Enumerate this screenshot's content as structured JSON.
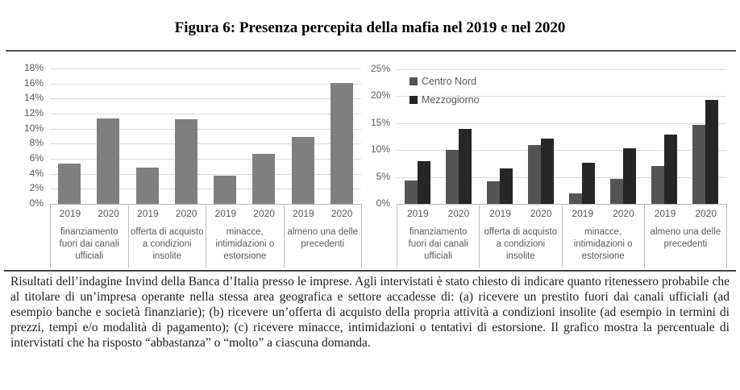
{
  "figure": {
    "title": "Figura 6: Presenza percepita della mafia nel 2019 e nel 2020",
    "caption": "Risultati dell’indagine Invind della Banca d’Italia presso le imprese. Agli intervistati è stato chiesto di indicare quanto ritenessero probabile che al titolare di un’impresa operante nella stessa area geografica e settore accadesse di: (a) ricevere un prestito fuori dai canali ufficiali (ad esempio banche e società finanziarie); (b) ricevere un’offerta di acquisto della propria attività a condizioni insolite (ad esempio in termini di prezzi, tempi e/o modalità di pagamento); (c) ricevere minacce, intimidazioni o tentativi di estorsione. Il grafico mostra la percentuale di intervistati che ha risposto “abbastanza” o “molto” a ciascuna domanda."
  },
  "chart_data": [
    {
      "type": "bar",
      "title": "",
      "categories": [
        "finanziamento\nfuori dai canali\nufficiali",
        "offerta di acquisto\na condizioni\ninsolite",
        "minacce,\nintimidazioni o\nestorsione",
        "almeno una delle\nprecedenti"
      ],
      "year_labels": [
        "2019",
        "2020"
      ],
      "series": [
        {
          "name": "",
          "color": "#7f7f7f",
          "values": [
            [
              5.4,
              11.4
            ],
            [
              4.8,
              11.3
            ],
            [
              3.8,
              6.6
            ],
            [
              8.9,
              16.1
            ]
          ]
        }
      ],
      "ylim": [
        0,
        18
      ],
      "ytick_step": 2,
      "ytick_labels": [
        "0%",
        "2%",
        "4%",
        "6%",
        "8%",
        "10%",
        "12%",
        "14%",
        "16%",
        "18%"
      ],
      "grid": true,
      "legend": false
    },
    {
      "type": "bar",
      "title": "",
      "categories": [
        "finanziamento\nfuori dai canali\nufficiali",
        "offerta di acquisto\na condizioni\ninsolite",
        "minacce,\nintimidazioni o\nestorsione",
        "almeno una delle\nprecedenti"
      ],
      "year_labels": [
        "2019",
        "2020"
      ],
      "series": [
        {
          "name": "Centro Nord",
          "color": "#545454",
          "values": [
            [
              4.3,
              10.1
            ],
            [
              4.2,
              10.9
            ],
            [
              1.9,
              4.7
            ],
            [
              7.0,
              14.6
            ]
          ]
        },
        {
          "name": "Mezzogiorno",
          "color": "#262626",
          "values": [
            [
              7.9,
              13.9
            ],
            [
              6.6,
              12.1
            ],
            [
              7.7,
              10.4
            ],
            [
              12.9,
              19.3
            ]
          ]
        }
      ],
      "ylim": [
        0,
        25
      ],
      "ytick_step": 5,
      "ytick_labels": [
        "0%",
        "5%",
        "10%",
        "15%",
        "20%",
        "25%"
      ],
      "grid": true,
      "legend": true,
      "legend_position": "top-left"
    }
  ]
}
